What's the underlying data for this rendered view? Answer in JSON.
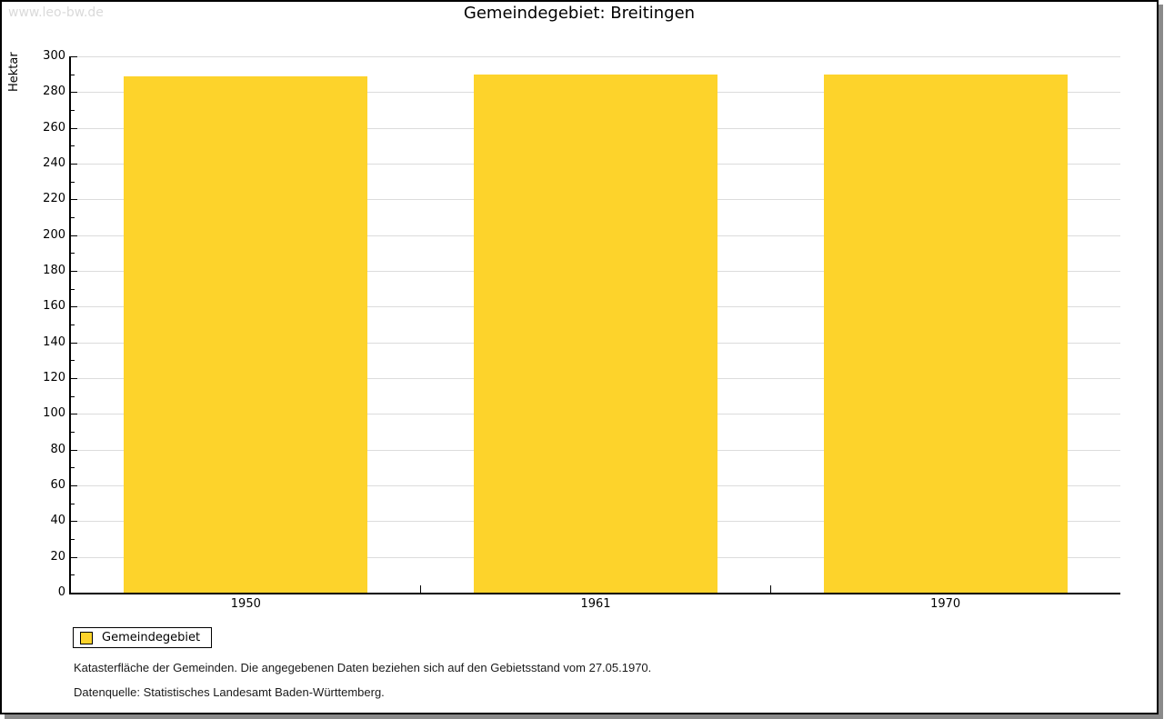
{
  "watermark": "www.leo-bw.de",
  "chart_data": {
    "type": "bar",
    "title": "Gemeindegebiet: Breitingen",
    "categories": [
      "1950",
      "1961",
      "1970"
    ],
    "series": [
      {
        "name": "Gemeindegebiet",
        "values": [
          289,
          290,
          290
        ]
      }
    ],
    "xlabel": "",
    "ylabel": "Hektar",
    "ylim": [
      0,
      300
    ],
    "ytick_major_step": 20,
    "ytick_minor_step": 10,
    "grid": true,
    "legend_position": "bottom-left",
    "bar_color": "#fdd32b"
  },
  "legend": {
    "items": [
      {
        "label": "Gemeindegebiet",
        "color": "#fdd32b"
      }
    ]
  },
  "footer": {
    "line1": "Katasterfläche der Gemeinden. Die angegebenen Daten beziehen sich auf den Gebietsstand vom 27.05.1970.",
    "line2": "Datenquelle: Statistisches Landesamt Baden-Württemberg."
  }
}
